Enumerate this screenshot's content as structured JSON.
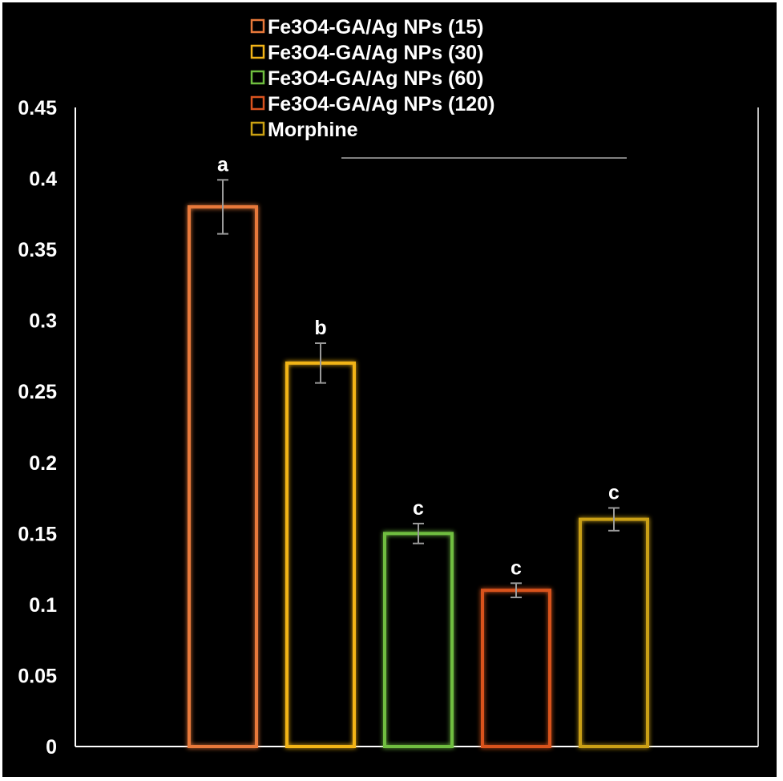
{
  "chart_data": {
    "type": "bar",
    "title": "",
    "xlabel": "",
    "ylabel": "",
    "ylim": [
      0,
      0.45
    ],
    "yticks": [
      "0",
      "0.05",
      "0.1",
      "0.15",
      "0.2",
      "0.25",
      "0.3",
      "0.35",
      "0.4",
      "0.45"
    ],
    "grid": false,
    "legend_position": "top-center",
    "series": [
      {
        "name": "Fe3O4-GA/Ag NPs (15)",
        "value": 0.38,
        "error": 0.019,
        "letter": "a",
        "color": "#e8793a"
      },
      {
        "name": "Fe3O4-GA/Ag NPs (30)",
        "value": 0.27,
        "error": 0.014,
        "letter": "b",
        "color": "#f2b417"
      },
      {
        "name": "Fe3O4-GA/Ag NPs (60)",
        "value": 0.15,
        "error": 0.007,
        "letter": "c",
        "color": "#6fbe3f"
      },
      {
        "name": "Fe3O4-GA/Ag NPs (120)",
        "value": 0.11,
        "error": 0.005,
        "letter": "c",
        "color": "#d9531e"
      },
      {
        "name": "Morphine",
        "value": 0.16,
        "error": 0.008,
        "letter": "c",
        "color": "#caa012"
      }
    ],
    "colors": {
      "background": "#000000",
      "axis": "#ffffff",
      "text": "#ffffff",
      "error_bar": "#9a9a9a"
    }
  }
}
